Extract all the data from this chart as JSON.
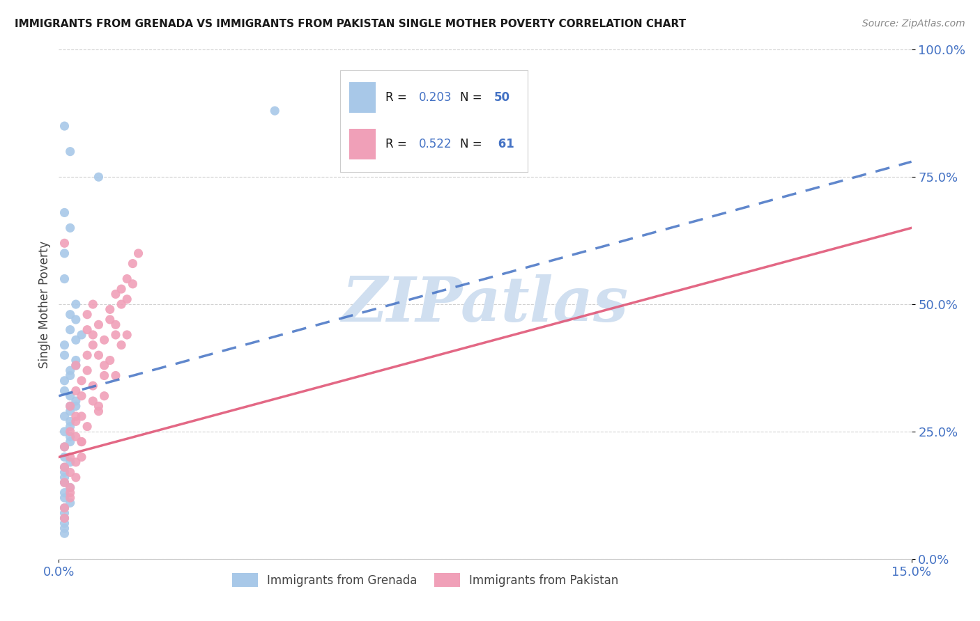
{
  "title": "IMMIGRANTS FROM GRENADA VS IMMIGRANTS FROM PAKISTAN SINGLE MOTHER POVERTY CORRELATION CHART",
  "source": "Source: ZipAtlas.com",
  "ylabel": "Single Mother Poverty",
  "ytick_labels": [
    "0.0%",
    "25.0%",
    "50.0%",
    "75.0%",
    "100.0%"
  ],
  "ytick_vals": [
    0.0,
    0.25,
    0.5,
    0.75,
    1.0
  ],
  "xtick_labels": [
    "0.0%",
    "15.0%"
  ],
  "xtick_vals": [
    0.0,
    0.15
  ],
  "R_grenada": 0.203,
  "N_grenada": 50,
  "R_pakistan": 0.522,
  "N_pakistan": 61,
  "color_grenada": "#a8c8e8",
  "color_pakistan": "#f0a0b8",
  "line_color_grenada": "#4472c4",
  "line_color_pakistan": "#e05878",
  "watermark_text": "ZIPatlas",
  "watermark_color": "#d0dff0",
  "background_color": "#ffffff",
  "title_color": "#1a1a1a",
  "source_color": "#888888",
  "axis_label_color": "#4472c4",
  "xlim": [
    0.0,
    0.15
  ],
  "ylim": [
    0.0,
    1.0
  ],
  "grenada_line_x": [
    0.0,
    0.15
  ],
  "grenada_line_y": [
    0.32,
    0.78
  ],
  "pakistan_line_x": [
    0.0,
    0.15
  ],
  "pakistan_line_y": [
    0.2,
    0.65
  ],
  "grenada_x": [
    0.001,
    0.001,
    0.001,
    0.002,
    0.001,
    0.002,
    0.001,
    0.003,
    0.001,
    0.001,
    0.001,
    0.002,
    0.001,
    0.001,
    0.002,
    0.001,
    0.002,
    0.001,
    0.001,
    0.002,
    0.003,
    0.001,
    0.002,
    0.001,
    0.003,
    0.001,
    0.002,
    0.003,
    0.001,
    0.002,
    0.003,
    0.001,
    0.002,
    0.001,
    0.004,
    0.002,
    0.001,
    0.003,
    0.002,
    0.001,
    0.002,
    0.003,
    0.001,
    0.002,
    0.001,
    0.002,
    0.001,
    0.038,
    0.007,
    0.002
  ],
  "grenada_y": [
    0.33,
    0.28,
    0.25,
    0.3,
    0.35,
    0.32,
    0.4,
    0.38,
    0.22,
    0.18,
    0.15,
    0.27,
    0.2,
    0.12,
    0.45,
    0.42,
    0.37,
    0.08,
    0.1,
    0.48,
    0.5,
    0.6,
    0.65,
    0.55,
    0.43,
    0.17,
    0.14,
    0.47,
    0.07,
    0.23,
    0.3,
    0.85,
    0.8,
    0.68,
    0.44,
    0.36,
    0.06,
    0.39,
    0.26,
    0.05,
    0.19,
    0.31,
    0.13,
    0.29,
    0.09,
    0.24,
    0.16,
    0.88,
    0.75,
    0.11
  ],
  "pakistan_x": [
    0.001,
    0.001,
    0.002,
    0.001,
    0.002,
    0.003,
    0.001,
    0.002,
    0.003,
    0.002,
    0.003,
    0.004,
    0.002,
    0.003,
    0.005,
    0.004,
    0.003,
    0.005,
    0.004,
    0.006,
    0.005,
    0.004,
    0.006,
    0.007,
    0.005,
    0.006,
    0.008,
    0.007,
    0.006,
    0.008,
    0.009,
    0.007,
    0.01,
    0.008,
    0.009,
    0.011,
    0.01,
    0.009,
    0.012,
    0.011,
    0.01,
    0.013,
    0.012,
    0.011,
    0.014,
    0.013,
    0.001,
    0.002,
    0.003,
    0.004,
    0.005,
    0.007,
    0.008,
    0.01,
    0.012,
    0.001,
    0.002,
    0.004,
    0.006,
    0.054,
    0.003
  ],
  "pakistan_y": [
    0.22,
    0.18,
    0.25,
    0.15,
    0.2,
    0.27,
    0.1,
    0.3,
    0.28,
    0.13,
    0.33,
    0.35,
    0.17,
    0.38,
    0.4,
    0.32,
    0.19,
    0.45,
    0.28,
    0.42,
    0.48,
    0.23,
    0.44,
    0.46,
    0.37,
    0.5,
    0.36,
    0.4,
    0.34,
    0.43,
    0.47,
    0.3,
    0.52,
    0.38,
    0.49,
    0.53,
    0.44,
    0.39,
    0.55,
    0.42,
    0.46,
    0.58,
    0.51,
    0.5,
    0.6,
    0.54,
    0.08,
    0.12,
    0.16,
    0.23,
    0.26,
    0.29,
    0.32,
    0.36,
    0.44,
    0.62,
    0.14,
    0.2,
    0.31,
    0.78,
    0.24
  ]
}
